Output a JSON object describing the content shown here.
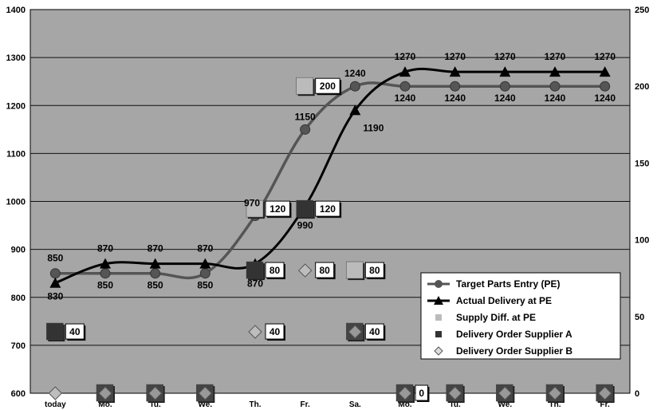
{
  "chart_data": {
    "type": "line",
    "title": "",
    "xlabel": "",
    "ylabel": "",
    "categories": [
      "today",
      "Mo.",
      "Tu.",
      "We.",
      "Th.",
      "Fr.",
      "Sa.",
      "Mo.",
      "Tu.",
      "We.",
      "Th.",
      "Fr."
    ],
    "ylim": [
      600,
      1400
    ],
    "yticks": [
      600,
      700,
      800,
      900,
      1000,
      1100,
      1200,
      1300,
      1400
    ],
    "y2lim": [
      0,
      250
    ],
    "y2ticks": [
      0,
      50,
      100,
      150,
      200,
      250
    ],
    "grid": true,
    "legend_position": "bottom-right",
    "series": [
      {
        "name": "Target Parts Entry (PE)",
        "axis": "left",
        "marker": "circle",
        "color": "#555555",
        "values": [
          850,
          850,
          850,
          850,
          970,
          1150,
          1240,
          1240,
          1240,
          1240,
          1240,
          1240
        ],
        "labels": [
          "850",
          "850",
          "850",
          "850",
          "970",
          "1150",
          "1240",
          "1240",
          "1240",
          "1240",
          "1240",
          "1240"
        ]
      },
      {
        "name": "Actual Delivery at PE",
        "axis": "left",
        "marker": "triangle",
        "color": "#000000",
        "values": [
          830,
          870,
          870,
          870,
          870,
          990,
          1190,
          1270,
          1270,
          1270,
          1270,
          1270
        ],
        "labels": [
          "830",
          "870",
          "870",
          "870",
          "870",
          "990",
          "1190",
          "1270",
          "1270",
          "1270",
          "1270",
          "1270"
        ]
      },
      {
        "name": "Supply Diff. at PE",
        "axis": "right",
        "marker": "square",
        "color": "#bbbbbb",
        "values": [
          null,
          null,
          null,
          null,
          120,
          200,
          80,
          null,
          null,
          null,
          null,
          null
        ],
        "labels": [
          "",
          "",
          "",
          "",
          "120",
          "200",
          "80",
          "",
          "",
          "",
          "",
          ""
        ]
      },
      {
        "name": "Delivery Order Supplier A",
        "axis": "right",
        "marker": "square",
        "color": "#333333",
        "values": [
          40,
          0,
          0,
          0,
          80,
          120,
          40,
          0,
          0,
          0,
          0,
          0
        ],
        "labels": [
          "40",
          "",
          "",
          "",
          "80",
          "120",
          "40",
          "0",
          "",
          "",
          "",
          ""
        ]
      },
      {
        "name": "Delivery Order Supplier B",
        "axis": "right",
        "marker": "diamond",
        "color": "#999999",
        "values": [
          0,
          0,
          0,
          0,
          40,
          80,
          40,
          0,
          0,
          0,
          0,
          0
        ],
        "labels": [
          "",
          "",
          "",
          "",
          "40",
          "80",
          "",
          "",
          "",
          "",
          "",
          ""
        ]
      }
    ]
  }
}
